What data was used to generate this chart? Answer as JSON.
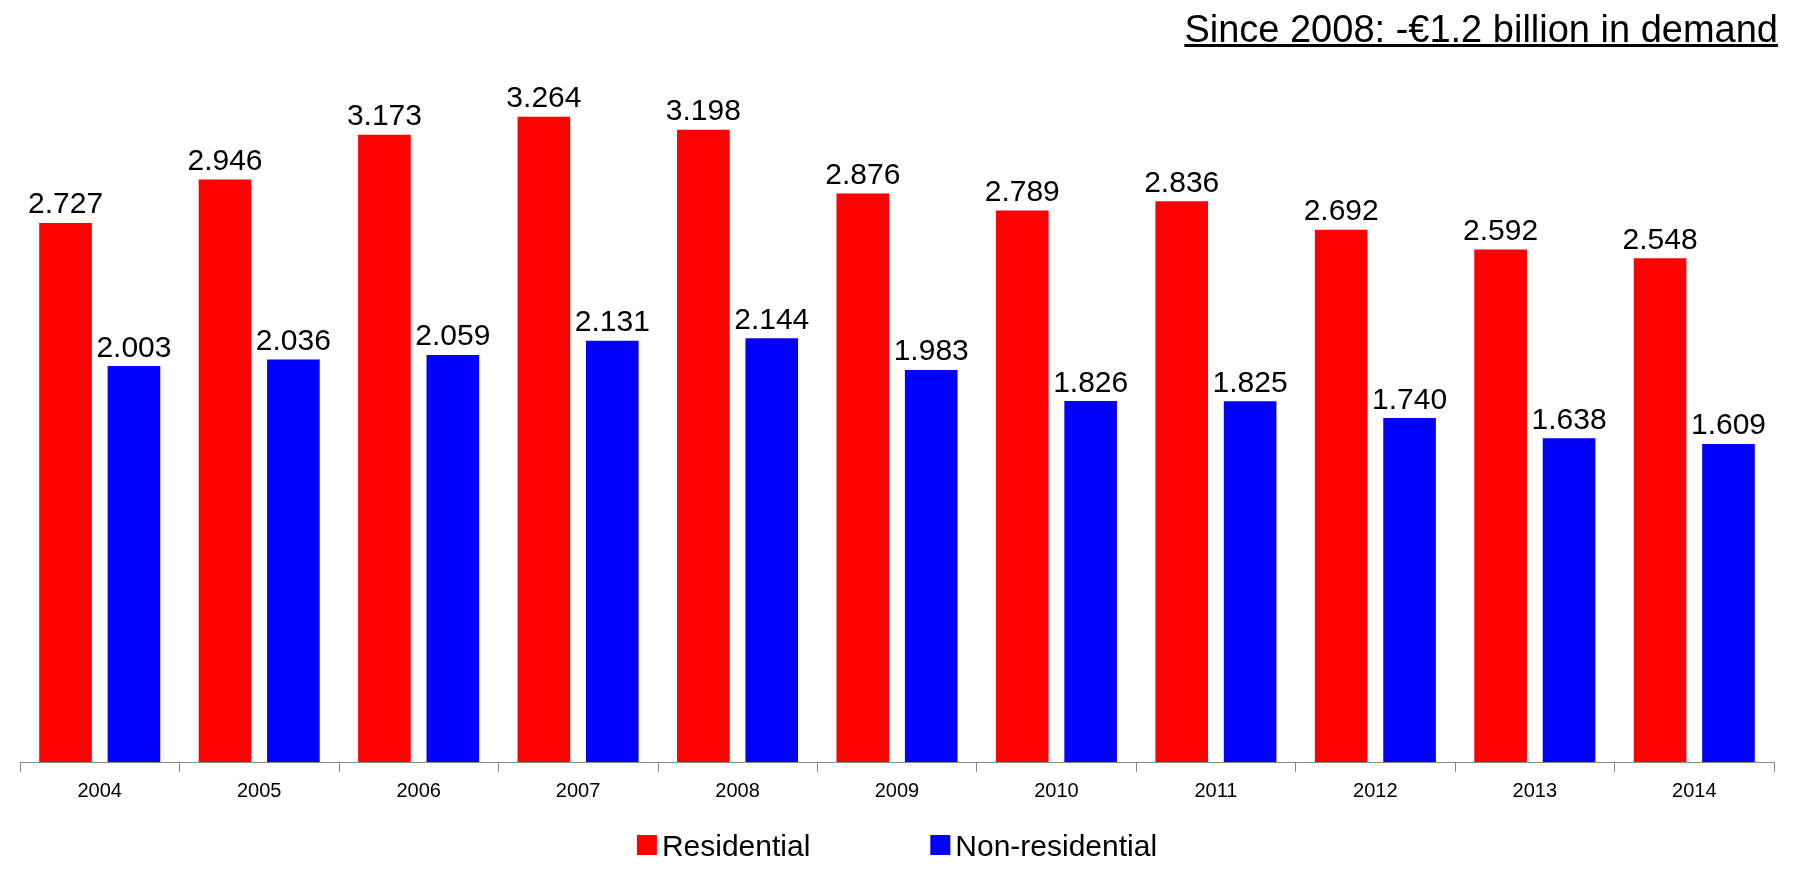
{
  "chart_data": {
    "type": "bar",
    "title": "Since 2008: -€1.2 billion in demand",
    "categories": [
      "2004",
      "2005",
      "2006",
      "2007",
      "2008",
      "2009",
      "2010",
      "2011",
      "2012",
      "2013",
      "2014"
    ],
    "series": [
      {
        "name": "Residential",
        "color": "#ff0000",
        "values": [
          2.727,
          2.946,
          3.173,
          3.264,
          3.198,
          2.876,
          2.789,
          2.836,
          2.692,
          2.592,
          2.548
        ],
        "value_labels": [
          "2.727",
          "2.946",
          "3.173",
          "3.264",
          "3.198",
          "2.876",
          "2.789",
          "2.836",
          "2.692",
          "2.592",
          "2.548"
        ]
      },
      {
        "name": "Non-residential",
        "color": "#0000ff",
        "values": [
          2.003,
          2.036,
          2.059,
          2.131,
          2.144,
          1.983,
          1.826,
          1.825,
          1.74,
          1.638,
          1.609
        ],
        "value_labels": [
          "2.003",
          "2.036",
          "2.059",
          "2.131",
          "2.144",
          "1.983",
          "1.826",
          "1.825",
          "1.740",
          "1.638",
          "1.609"
        ]
      }
    ],
    "legend": "bottom"
  }
}
